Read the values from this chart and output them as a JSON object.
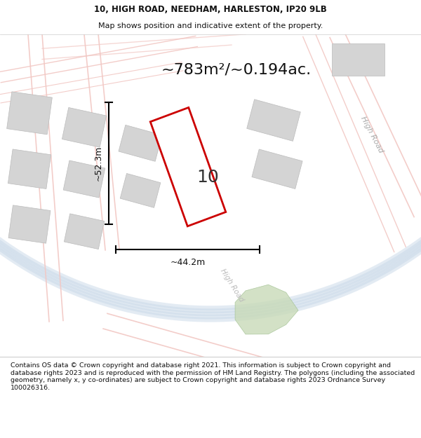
{
  "title_line1": "10, HIGH ROAD, NEEDHAM, HARLESTON, IP20 9LB",
  "title_line2": "Map shows position and indicative extent of the property.",
  "area_text": "~783m²/~0.194ac.",
  "dim_vertical": "~52.3m",
  "dim_horizontal": "~44.2m",
  "property_number": "10",
  "footer_text": "Contains OS data © Crown copyright and database right 2021. This information is subject to Crown copyright and database rights 2023 and is reproduced with the permission of HM Land Registry. The polygons (including the associated geometry, namely x, y co-ordinates) are subject to Crown copyright and database rights 2023 Ordnance Survey 100026316.",
  "bg_color": "#f5f4f2",
  "map_bg": "#f0eeeb",
  "road_color_light": "#f2c8c4",
  "property_outline_color": "#cc0000",
  "property_fill_color": "#ffffff",
  "building_color": "#d4d4d4",
  "blue_road_color": "#c8d8e8",
  "green_patch_color": "#c8dab8",
  "title_fontsize": 8.5,
  "footer_fontsize": 6.8,
  "area_fontsize": 16,
  "dim_fontsize": 9,
  "number_fontsize": 18
}
